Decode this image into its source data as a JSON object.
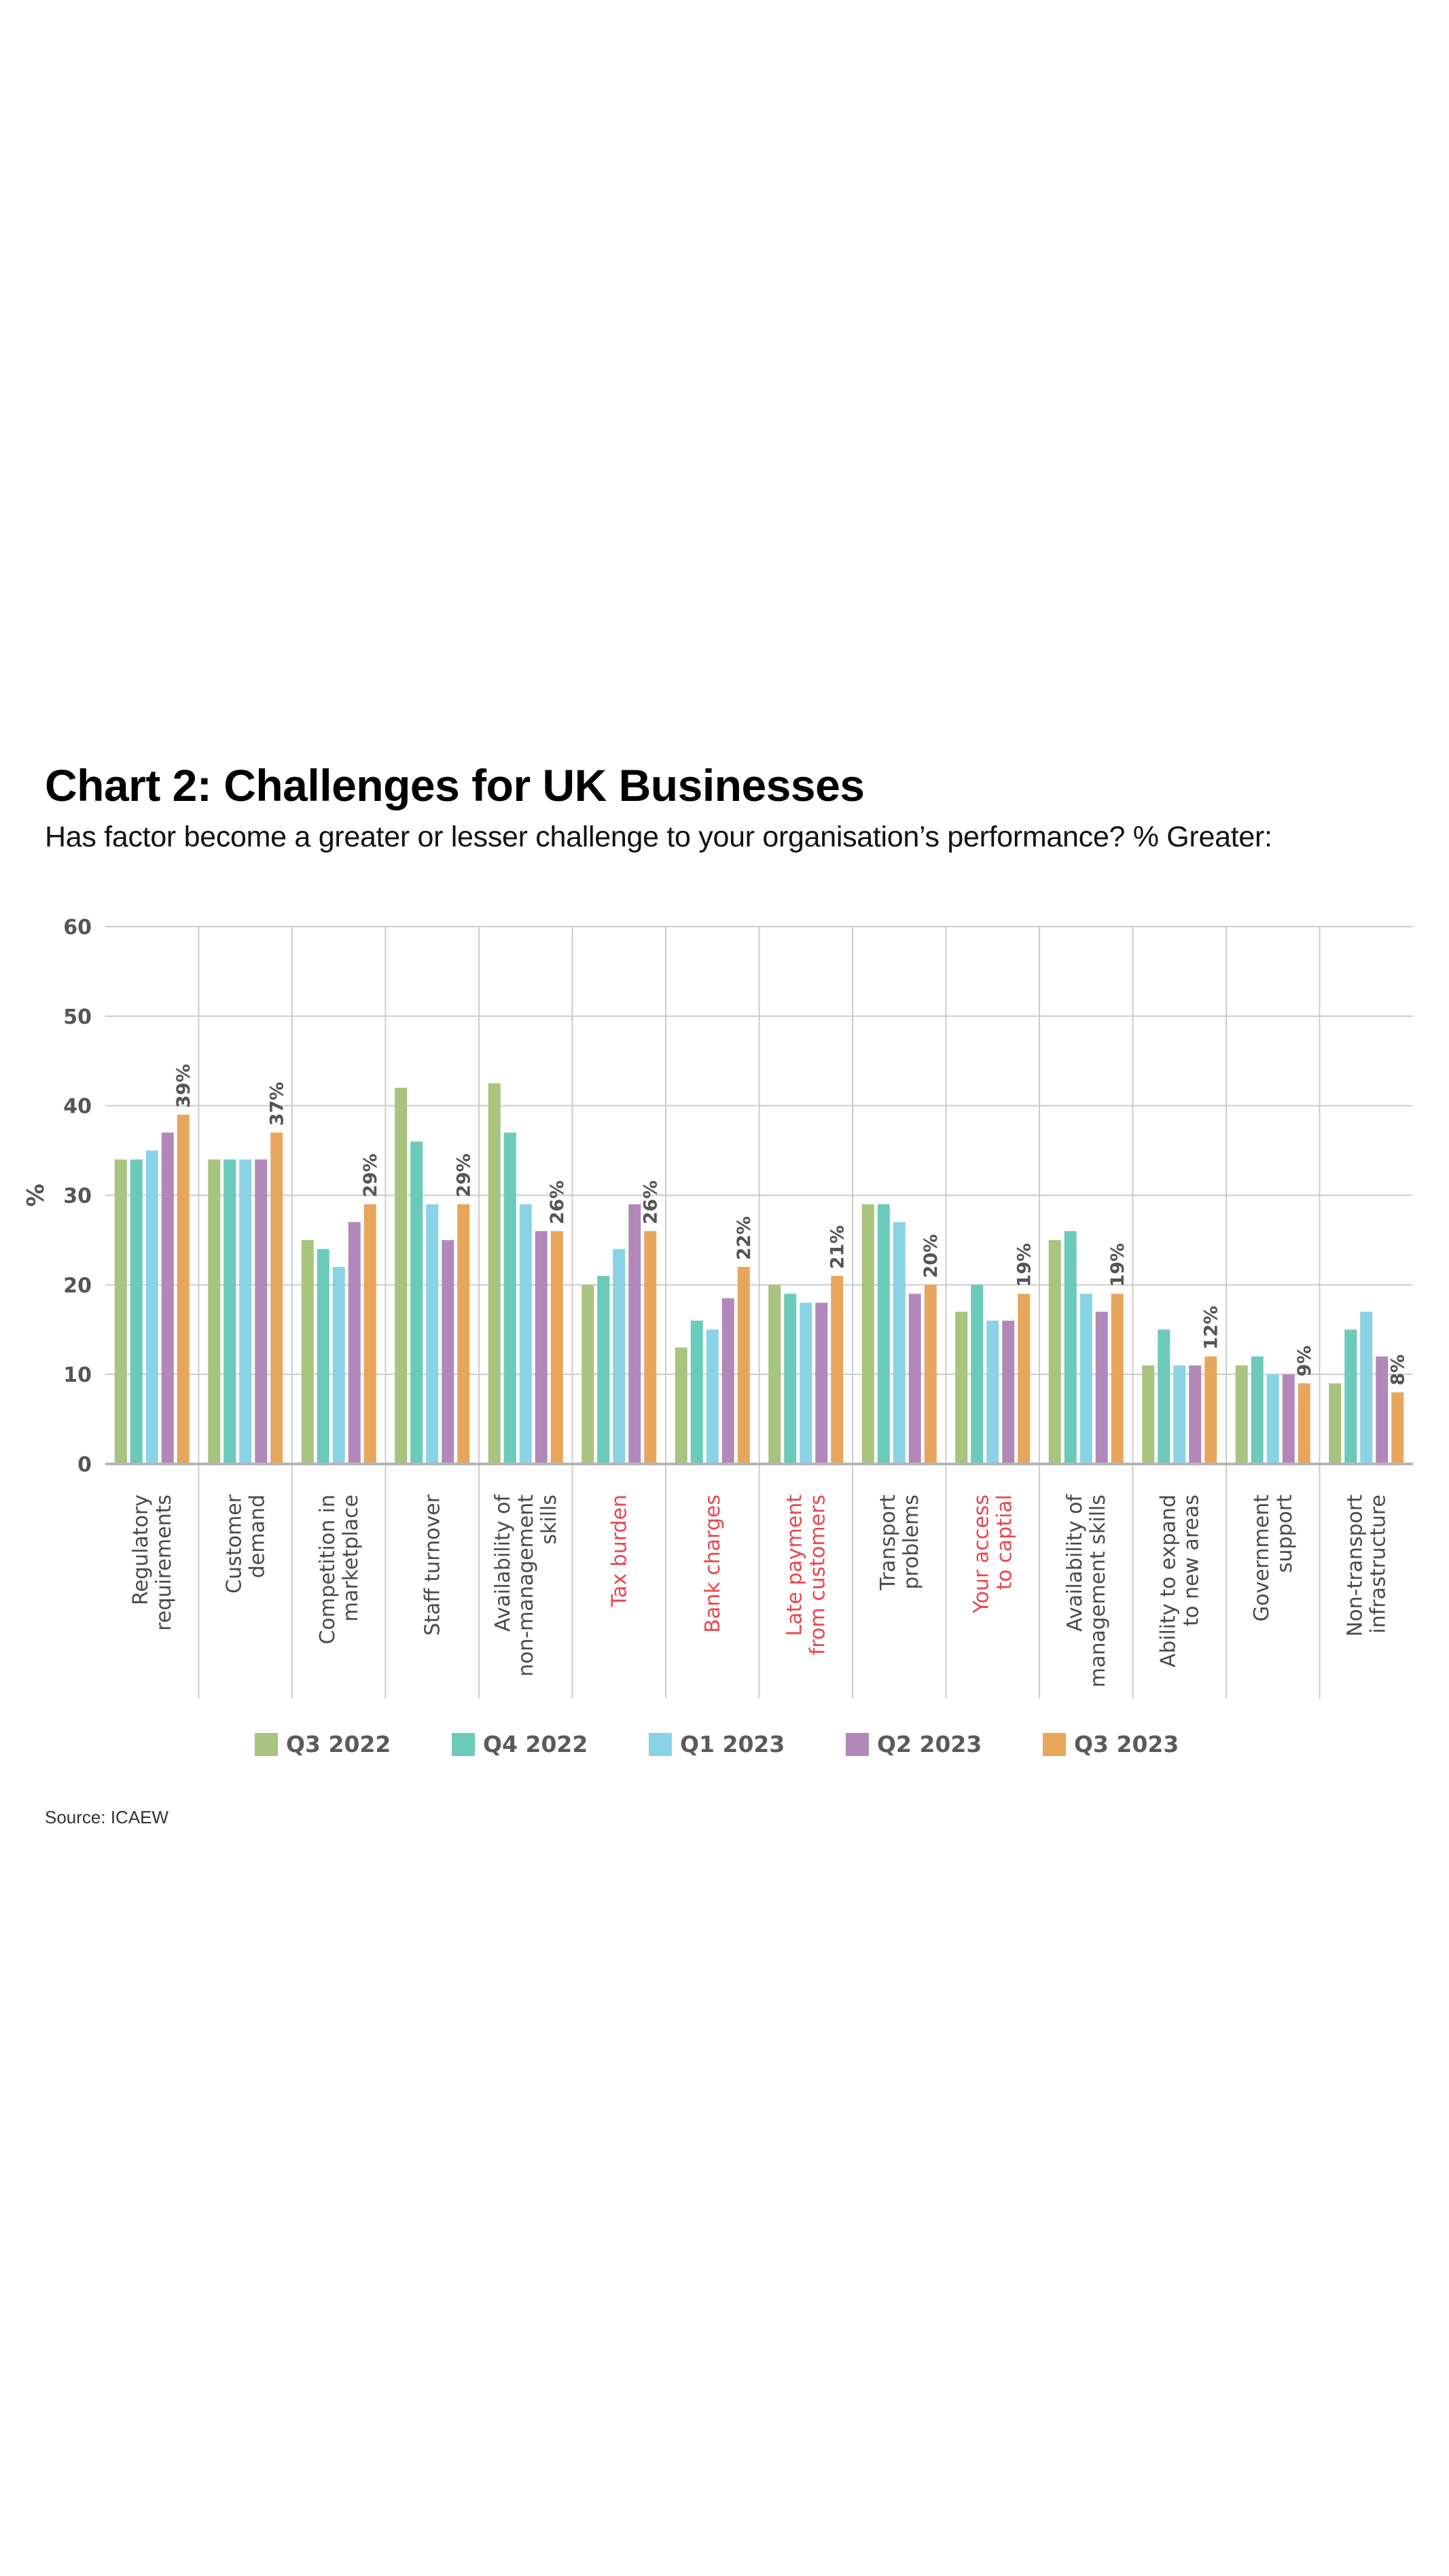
{
  "header": {
    "title": "Chart 2: Challenges for UK Businesses",
    "subtitle": "Has factor become a greater or lesser challenge to your organisation’s performance? % Greater:"
  },
  "footer": {
    "source": "Source: ICAEW"
  },
  "chart_data": {
    "type": "bar",
    "title": "Chart 2: Challenges for UK Businesses",
    "subtitle": "Has factor become a greater or lesser challenge to your organisation’s performance? % Greater:",
    "xlabel": "",
    "ylabel": "%",
    "ylim": [
      0,
      60
    ],
    "yticks": [
      0,
      10,
      20,
      30,
      40,
      50,
      60
    ],
    "grid": true,
    "legend_position": "bottom",
    "categories": [
      {
        "label": [
          "Regulatory",
          "requirements"
        ],
        "highlight": false
      },
      {
        "label": [
          "Customer",
          "demand"
        ],
        "highlight": false
      },
      {
        "label": [
          "Competition in",
          "marketplace"
        ],
        "highlight": false
      },
      {
        "label": [
          "Staff turnover"
        ],
        "highlight": false
      },
      {
        "label": [
          "Availability of",
          "non-management",
          "skills"
        ],
        "highlight": false
      },
      {
        "label": [
          "Tax burden"
        ],
        "highlight": true
      },
      {
        "label": [
          "Bank charges"
        ],
        "highlight": true
      },
      {
        "label": [
          "Late payment",
          "from customers"
        ],
        "highlight": true
      },
      {
        "label": [
          "Transport",
          "problems"
        ],
        "highlight": false
      },
      {
        "label": [
          "Your access",
          "to captial"
        ],
        "highlight": true
      },
      {
        "label": [
          "Availability of",
          "management skills"
        ],
        "highlight": false
      },
      {
        "label": [
          "Ability to expand",
          "to new areas"
        ],
        "highlight": false
      },
      {
        "label": [
          "Government",
          "support"
        ],
        "highlight": false
      },
      {
        "label": [
          "Non-transport",
          "infrastructure"
        ],
        "highlight": false
      }
    ],
    "series": [
      {
        "name": "Q3 2022",
        "color": "#a8c47e",
        "values": [
          34,
          34,
          25,
          42,
          42.5,
          20,
          13,
          20,
          29,
          17,
          25,
          11,
          11,
          9
        ]
      },
      {
        "name": "Q4 2022",
        "color": "#6ccaba",
        "values": [
          34,
          34,
          24,
          36,
          37,
          21,
          16,
          19,
          29,
          20,
          26,
          15,
          12,
          15
        ]
      },
      {
        "name": "Q1 2023",
        "color": "#8ad3e6",
        "values": [
          35,
          34,
          22,
          29,
          29,
          24,
          15,
          18,
          27,
          16,
          19,
          11,
          10,
          17
        ]
      },
      {
        "name": "Q2 2023",
        "color": "#b288b9",
        "values": [
          37,
          34,
          27,
          25,
          26,
          29,
          18.5,
          18,
          19,
          16,
          17,
          11,
          10,
          12
        ]
      },
      {
        "name": "Q3 2023",
        "color": "#e8a65c",
        "values": [
          39,
          37,
          29,
          29,
          26,
          26,
          22,
          21,
          20,
          19,
          19,
          12,
          9,
          8
        ]
      }
    ],
    "data_labels": {
      "series": "Q3 2023",
      "labels": [
        "39%",
        "37%",
        "29%",
        "29%",
        "26%",
        "26%",
        "22%",
        "21%",
        "20%",
        "19%",
        "19%",
        "12%",
        "9%",
        "8%"
      ]
    },
    "colors": {
      "highlight_label": "#e8474f",
      "normal_label": "#4a4a4a",
      "grid": "#cccccc",
      "axis": "#b5b5b5"
    }
  }
}
